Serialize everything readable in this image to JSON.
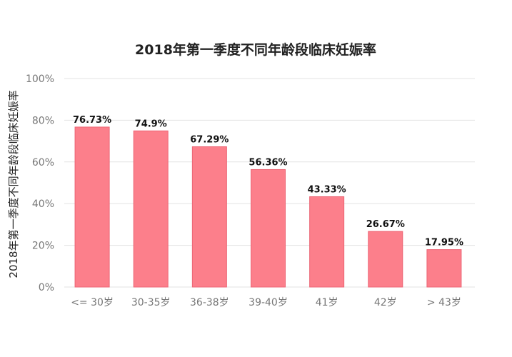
{
  "chart_data": {
    "type": "bar",
    "title": "2018年第一季度不同年龄段临床妊娠率",
    "xlabel": "",
    "ylabel": "2018年第一季度不同年龄段临床妊娠率",
    "categories": [
      "<= 30岁",
      "30-35岁",
      "36-38岁",
      "39-40岁",
      "41岁",
      "42岁",
      "> 43岁"
    ],
    "values": [
      76.73,
      74.9,
      67.29,
      56.36,
      43.33,
      26.67,
      17.95
    ],
    "value_labels": [
      "76.73%",
      "74.9%",
      "67.29%",
      "56.36%",
      "43.33%",
      "26.67%",
      "17.95%"
    ],
    "ylim": [
      0,
      100
    ],
    "yticks": [
      0,
      20,
      40,
      60,
      80,
      100
    ],
    "ytick_labels": [
      "0%",
      "20%",
      "40%",
      "60%",
      "80%",
      "100%"
    ],
    "grid": true,
    "bar_color": "#fc7f8b",
    "bar_edge_color": "#ec6574"
  }
}
